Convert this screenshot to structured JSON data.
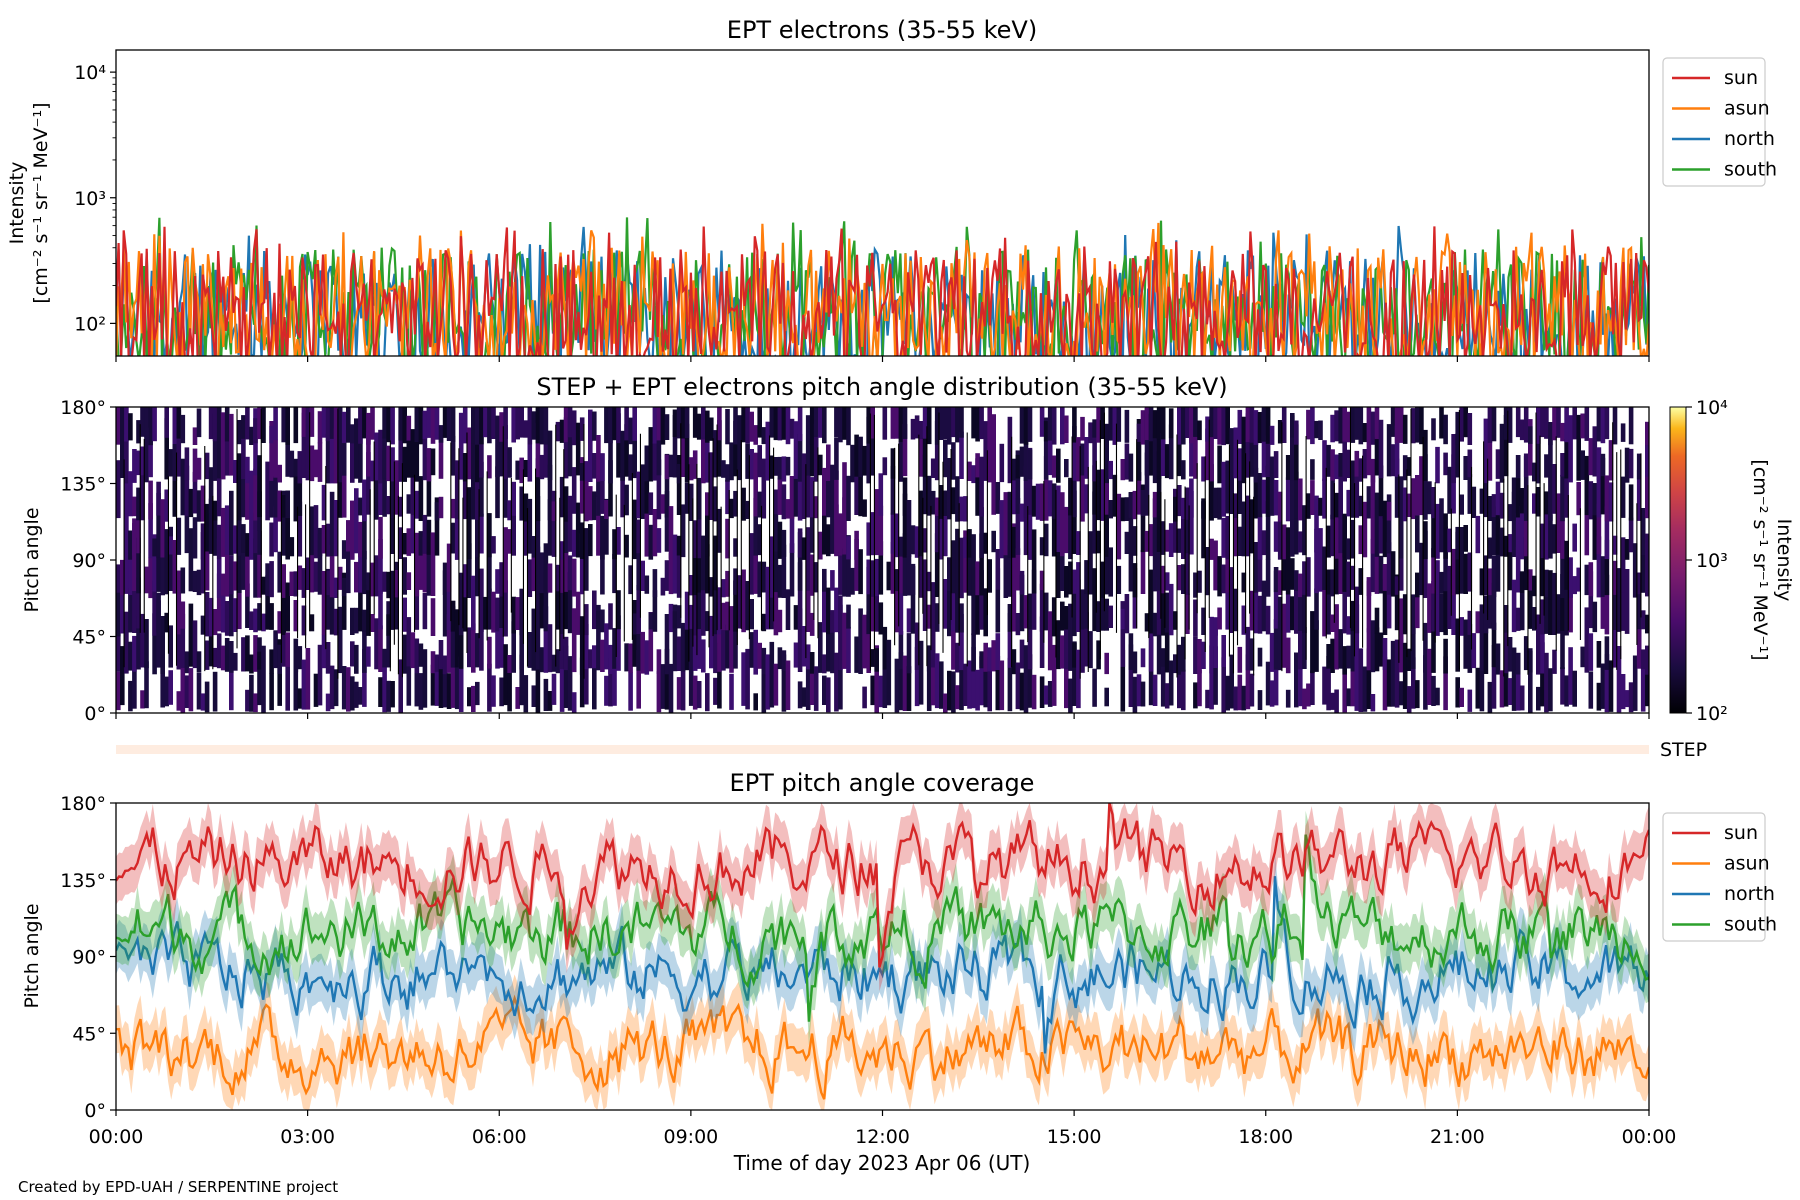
{
  "figure": {
    "credit": "Created by EPD-UAH / SERPENTINE project",
    "xlabel": "Time of day 2023 Apr 06 (UT)",
    "xticks": [
      "00:00",
      "03:00",
      "06:00",
      "09:00",
      "12:00",
      "15:00",
      "18:00",
      "21:00",
      "00:00"
    ]
  },
  "chart_data": [
    {
      "type": "line",
      "title": "EPT electrons (35-55 keV)",
      "ylabel": [
        "Intensity",
        "[cm⁻² s⁻¹ sr⁻¹ MeV⁻¹]"
      ],
      "yscale": "log",
      "ylim": [
        55,
        15000
      ],
      "yticks": [
        {
          "value": 100,
          "label": "10²"
        },
        {
          "value": 1000,
          "label": "10³"
        },
        {
          "value": 10000,
          "label": "10⁴"
        }
      ],
      "xlim_hours": [
        0,
        24
      ],
      "legend": "upper-right-outside",
      "series": [
        {
          "name": "sun",
          "color": "#d62728",
          "typical": 130,
          "peak": 600
        },
        {
          "name": "asun",
          "color": "#ff7f0e",
          "typical": 140,
          "peak": 650
        },
        {
          "name": "north",
          "color": "#1f77b4",
          "typical": 130,
          "peak": 620
        },
        {
          "name": "south",
          "color": "#2ca02c",
          "typical": 130,
          "peak": 740
        }
      ]
    },
    {
      "type": "heatmap",
      "title": "STEP + EPT electrons pitch angle distribution (35-55 keV)",
      "ylabel": "Pitch angle",
      "ylim": [
        0,
        180
      ],
      "yticks": [
        "0°",
        "45°",
        "90°",
        "135°",
        "180°"
      ],
      "colormap": "inferno",
      "colorbar": {
        "label": [
          "Intensity",
          "[cm⁻² s⁻¹ sr⁻¹ MeV⁻¹]"
        ],
        "range": [
          100,
          10000
        ],
        "scale": "log",
        "ticks": [
          {
            "value": 100,
            "label": "10²"
          },
          {
            "value": 1000,
            "label": "10³"
          },
          {
            "value": 10000,
            "label": "10⁴"
          }
        ]
      },
      "typical_intensity": 160
    },
    {
      "type": "bar",
      "title": "",
      "label": "STEP",
      "note": "thin STEP coverage strip"
    },
    {
      "type": "line",
      "title": "EPT pitch angle coverage",
      "ylabel": "Pitch angle",
      "ylim": [
        0,
        180
      ],
      "yticks": [
        "0°",
        "45°",
        "90°",
        "135°",
        "180°"
      ],
      "legend": "upper-right-outside",
      "series": [
        {
          "name": "sun",
          "color": "#d62728",
          "mean": 145
        },
        {
          "name": "asun",
          "color": "#ff7f0e",
          "mean": 35
        },
        {
          "name": "north",
          "color": "#1f77b4",
          "mean": 80
        },
        {
          "name": "south",
          "color": "#2ca02c",
          "mean": 105
        }
      ]
    }
  ]
}
